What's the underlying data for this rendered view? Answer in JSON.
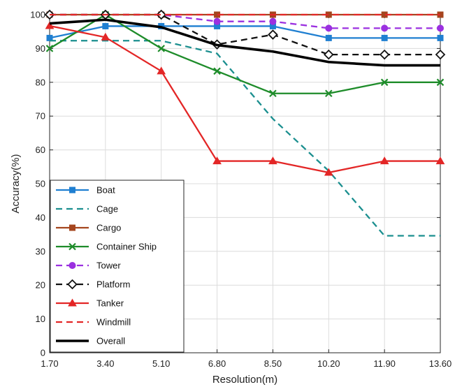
{
  "chart_data": {
    "type": "line",
    "title": "",
    "xlabel": "Resolution(m)",
    "ylabel": "Accuracy(%)",
    "categories": [
      "1.70",
      "3.40",
      "5.10",
      "6.80",
      "8.50",
      "10.20",
      "11.90",
      "13.60"
    ],
    "ylim": [
      0,
      100
    ],
    "yticks": [
      "0",
      "10",
      "20",
      "30",
      "40",
      "50",
      "60",
      "70",
      "80",
      "90",
      "100"
    ],
    "grid": true,
    "legend_position": "bottom-left",
    "series": [
      {
        "name": "Boat",
        "color": "#1f7fd1",
        "dash": "solid",
        "marker": "square",
        "values": [
          93.1,
          96.6,
          96.6,
          96.6,
          96.6,
          93.1,
          93.1,
          93.1
        ]
      },
      {
        "name": "Cage",
        "color": "#1b8f8f",
        "dash": "dashed",
        "marker": "none",
        "values": [
          92.3,
          92.3,
          92.3,
          88.5,
          69.2,
          53.8,
          34.6,
          34.6
        ]
      },
      {
        "name": "Cargo",
        "color": "#a5451e",
        "dash": "solid",
        "marker": "square",
        "values": [
          100,
          100,
          100,
          100,
          100,
          100,
          100,
          100
        ]
      },
      {
        "name": "Container Ship",
        "color": "#1e8c2a",
        "dash": "solid",
        "marker": "x",
        "values": [
          90,
          100,
          90,
          83.3,
          76.7,
          76.7,
          80,
          80
        ]
      },
      {
        "name": "Tower",
        "color": "#9b30e0",
        "dash": "dashed",
        "marker": "circle",
        "values": [
          100,
          100,
          100,
          98,
          98,
          96,
          96,
          96
        ]
      },
      {
        "name": "Platform",
        "color": "#111111",
        "dash": "dashed",
        "marker": "diamond",
        "values": [
          100,
          100,
          100,
          91.2,
          94.1,
          88.2,
          88.2,
          88.2
        ]
      },
      {
        "name": "Tanker",
        "color": "#e32626",
        "dash": "solid",
        "marker": "triangle",
        "values": [
          96.7,
          93.3,
          83.3,
          56.7,
          56.7,
          53.3,
          56.7,
          56.7
        ]
      },
      {
        "name": "Windmill",
        "color": "#e32626",
        "dash": "dashed",
        "marker": "none",
        "values": [
          100,
          100,
          100,
          100,
          100,
          100,
          100,
          100
        ]
      },
      {
        "name": "Overall",
        "color": "#000000",
        "dash": "solid",
        "marker": "none",
        "thick": true,
        "values": [
          97.4,
          98.5,
          96.3,
          91,
          89.1,
          86,
          85,
          85
        ]
      }
    ]
  }
}
